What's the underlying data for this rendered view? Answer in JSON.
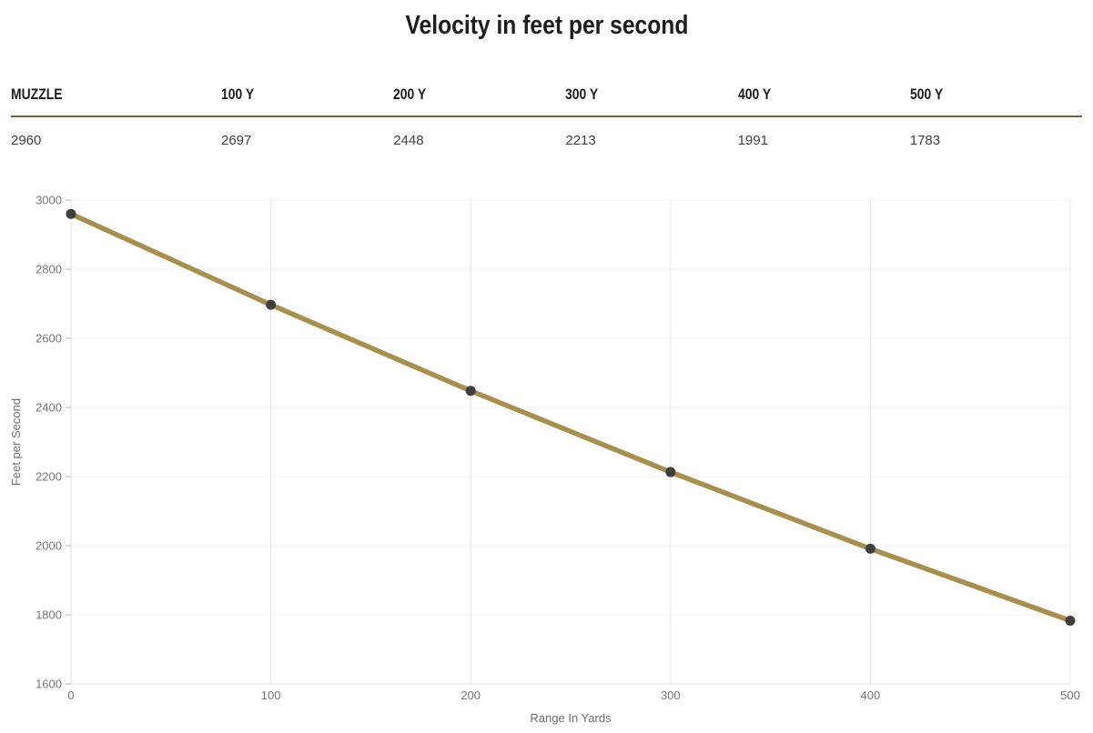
{
  "page": {
    "title": "Velocity in feet per second"
  },
  "table": {
    "headers": [
      "MUZZLE",
      "100 Y",
      "200 Y",
      "300 Y",
      "400 Y",
      "500 Y"
    ],
    "values": [
      "2960",
      "2697",
      "2448",
      "2213",
      "1991",
      "1783"
    ]
  },
  "chart_data": {
    "type": "line",
    "title": "Velocity in feet per second",
    "x": [
      0,
      100,
      200,
      300,
      400,
      500
    ],
    "values": [
      2960,
      2697,
      2448,
      2213,
      1991,
      1783
    ],
    "xlabel": "Range In Yards",
    "ylabel": "Feet per Second",
    "xlim": [
      0,
      500
    ],
    "ylim": [
      1600,
      3000
    ],
    "x_ticks": [
      0,
      100,
      200,
      300,
      400,
      500
    ],
    "y_ticks": [
      1600,
      1800,
      2000,
      2200,
      2400,
      2600,
      2800,
      3000
    ],
    "grid": true,
    "legend": "none",
    "line_color": "#a78f4e",
    "point_color": "#3f3f3f",
    "grid_color_vertical": "#e6e6e6",
    "grid_color_horizontal": "#efefef",
    "axis_line_color": "#dedede",
    "tick_mark_color": "#b5b5b5",
    "tick_label_color": "#757575",
    "axis_title_color": "#6e6e6e"
  }
}
